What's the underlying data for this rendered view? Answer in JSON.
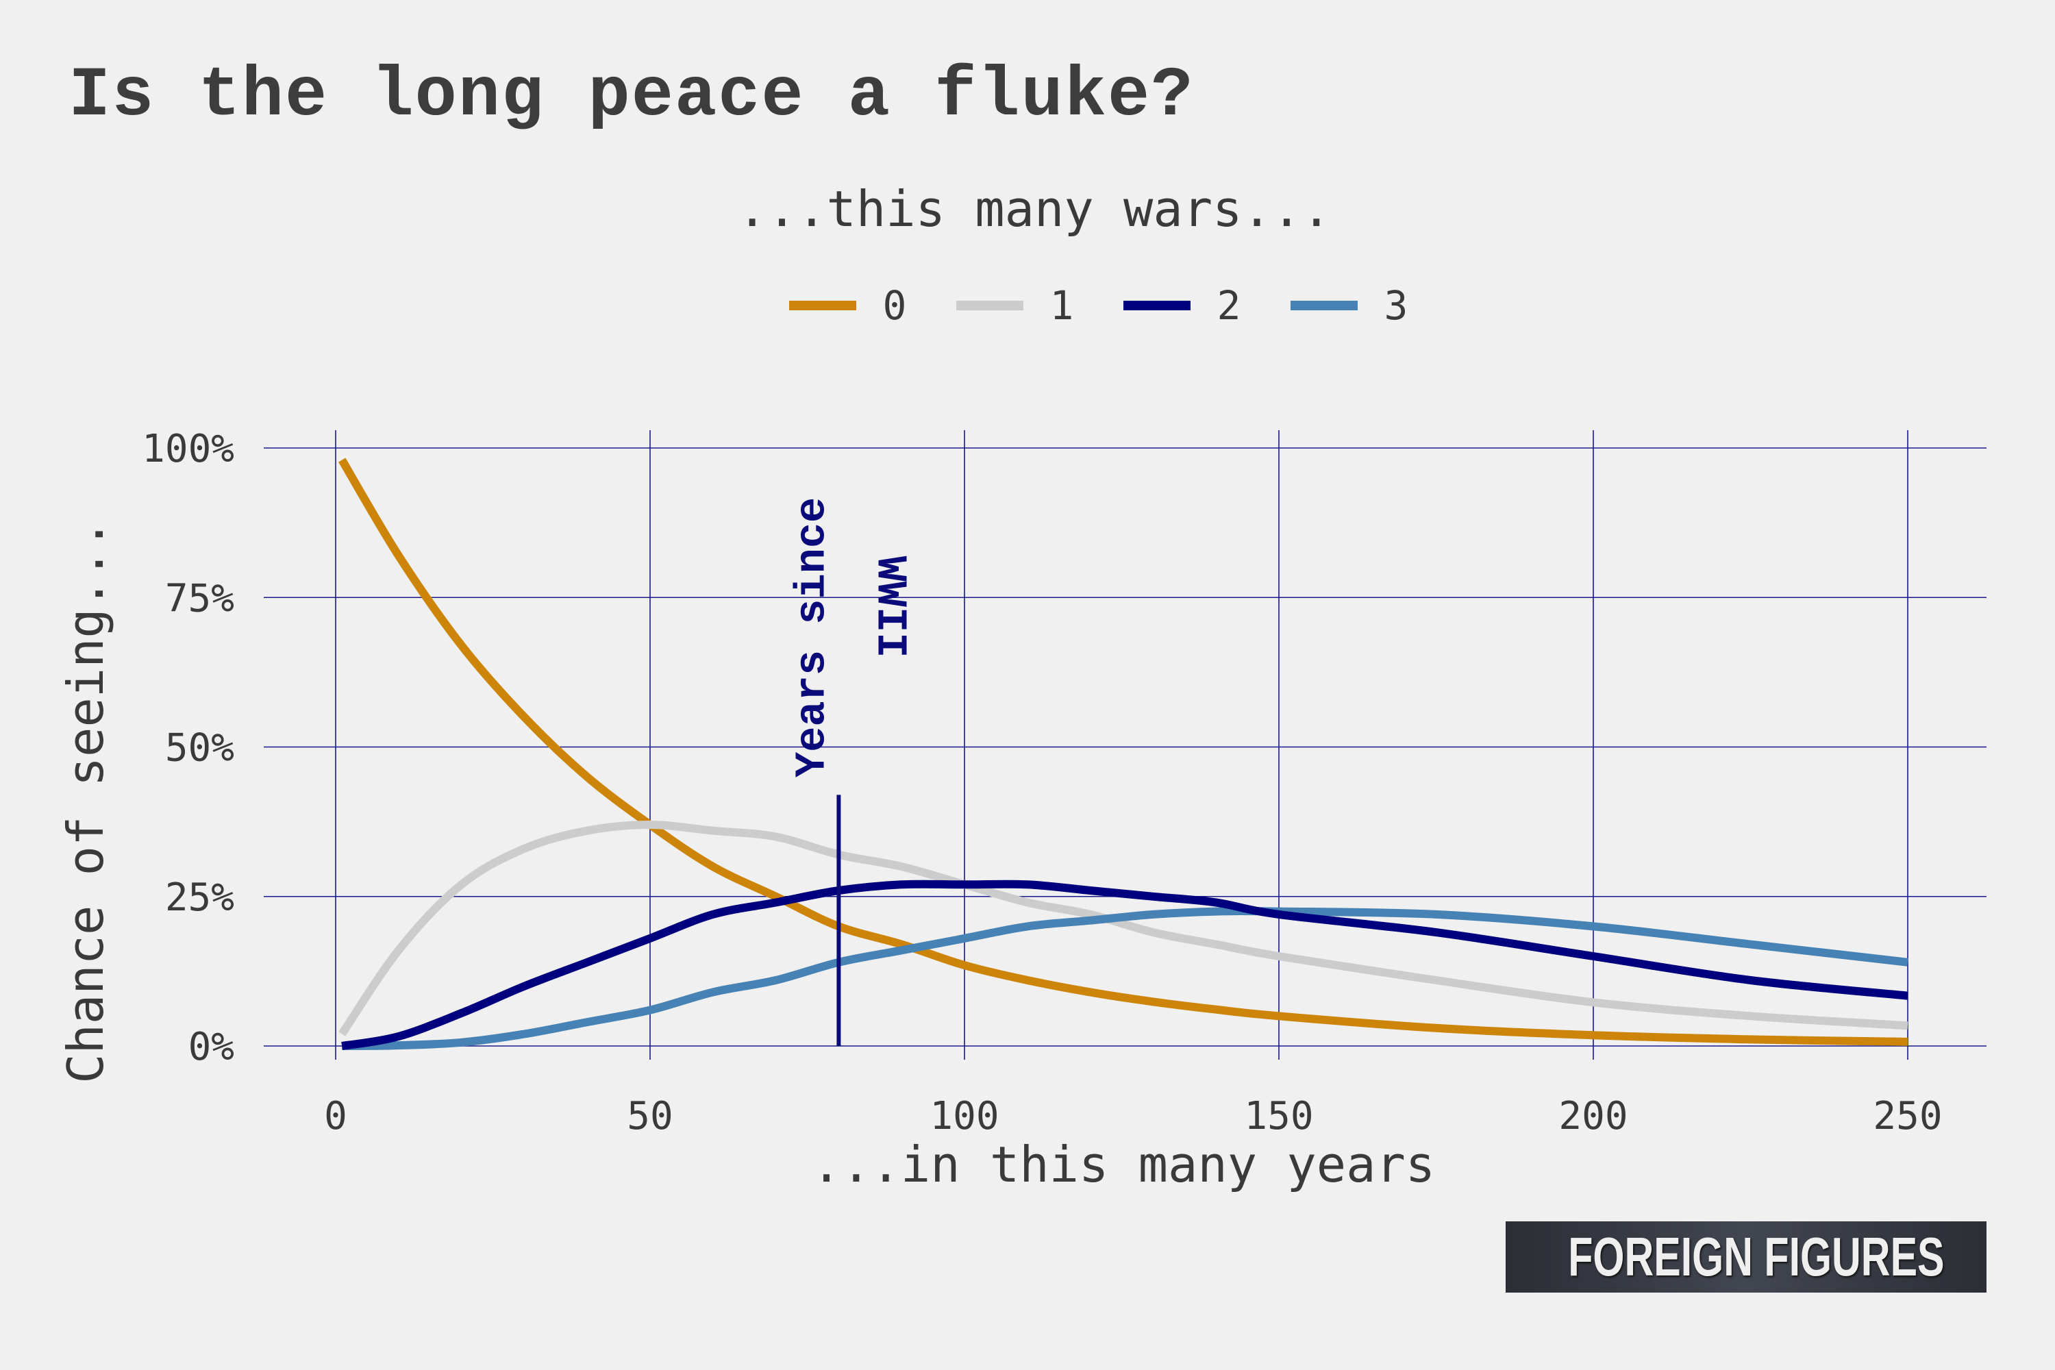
{
  "title": "Is the long peace a fluke?",
  "brand": "FOREIGN FIGURES",
  "colors": {
    "background": "#f0f0f0",
    "grid": "#1a1a8c",
    "annotation": "#0a0a7a",
    "text": "#3a3a3a"
  },
  "chart_data": {
    "type": "line",
    "legend_title": "...this many wars...",
    "legend_position": "top",
    "xlabel": "...in this many years",
    "ylabel": "Chance of seeing...",
    "xlim": [
      0,
      250
    ],
    "ylim": [
      0,
      1
    ],
    "x_ticks": [
      0,
      50,
      100,
      150,
      200,
      250
    ],
    "x_tick_labels": [
      "0",
      "50",
      "100",
      "150",
      "200",
      "250"
    ],
    "y_ticks": [
      0,
      0.25,
      0.5,
      0.75,
      1
    ],
    "y_tick_labels": [
      "0%",
      "25%",
      "50%",
      "75%",
      "100%"
    ],
    "grid": true,
    "x": [
      1,
      10,
      20,
      30,
      40,
      50,
      60,
      70,
      80,
      90,
      100,
      110,
      120,
      130,
      140,
      150,
      175,
      200,
      225,
      250
    ],
    "series": [
      {
        "name": "0",
        "color": "#cc8508",
        "values": [
          0.98,
          0.82,
          0.67,
          0.55,
          0.45,
          0.37,
          0.3,
          0.25,
          0.2,
          0.17,
          0.135,
          0.11,
          0.09,
          0.074,
          0.061,
          0.05,
          0.03,
          0.018,
          0.011,
          0.007
        ]
      },
      {
        "name": "1",
        "color": "#cccccc",
        "values": [
          0.02,
          0.16,
          0.27,
          0.33,
          0.36,
          0.37,
          0.36,
          0.35,
          0.32,
          0.3,
          0.27,
          0.24,
          0.22,
          0.19,
          0.17,
          0.15,
          0.11,
          0.073,
          0.05,
          0.034
        ]
      },
      {
        "name": "2",
        "color": "#00007f",
        "values": [
          0.0,
          0.016,
          0.055,
          0.1,
          0.14,
          0.18,
          0.22,
          0.24,
          0.26,
          0.27,
          0.27,
          0.27,
          0.26,
          0.25,
          0.24,
          0.22,
          0.19,
          0.15,
          0.11,
          0.084
        ]
      },
      {
        "name": "3",
        "color": "#4682b4",
        "values": [
          0.0,
          0.001,
          0.006,
          0.02,
          0.04,
          0.06,
          0.09,
          0.11,
          0.14,
          0.16,
          0.18,
          0.2,
          0.21,
          0.22,
          0.225,
          0.225,
          0.22,
          0.2,
          0.17,
          0.14
        ]
      }
    ],
    "annotations": [
      {
        "x": 80,
        "y_top": 0.42,
        "text_line1": "Years since",
        "text_line2": "WWII",
        "color": "#0a0a7a"
      }
    ]
  }
}
